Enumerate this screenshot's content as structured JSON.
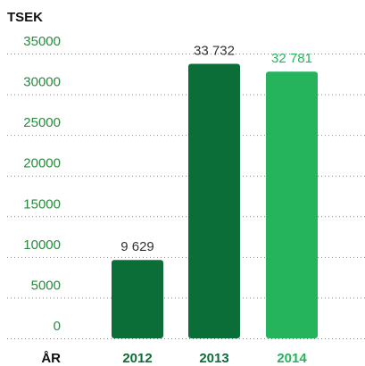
{
  "chart_data": {
    "type": "bar",
    "y_label": "TSEK",
    "x_label": "ÅR",
    "categories": [
      "2012",
      "2013",
      "2014"
    ],
    "values": [
      9629,
      33732,
      32781
    ],
    "value_labels": [
      "9 629",
      "33 732",
      "32 781"
    ],
    "colors": [
      "#0b6e38",
      "#0b6e38",
      "#25b45c"
    ],
    "label_colors": [
      "#333333",
      "#333333",
      "#25b45c"
    ],
    "category_colors": [
      "#0b6e38",
      "#0b6e38",
      "#25b45c"
    ],
    "tick_color": "#2a8a3e",
    "ylim": [
      0,
      35000
    ],
    "yticks": [
      0,
      5000,
      10000,
      15000,
      20000,
      25000,
      30000,
      35000
    ],
    "grid": true
  }
}
